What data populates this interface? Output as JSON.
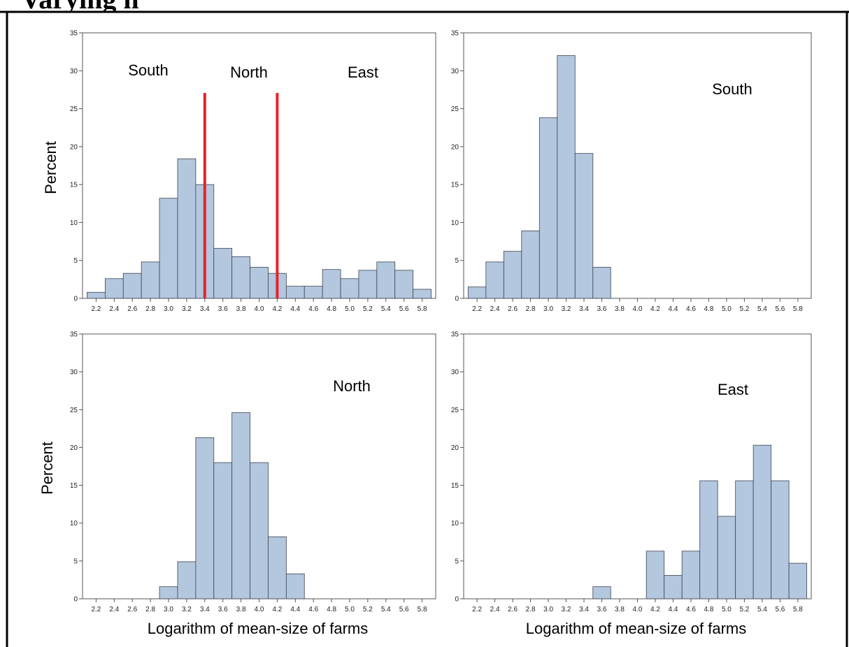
{
  "page": {
    "header_text_partial": "Varying n"
  },
  "chart_data": [
    {
      "type": "bar",
      "panel": "top-left",
      "ylabel": "Percent",
      "xlabel": "",
      "ylim": [
        0,
        35
      ],
      "yticks": [
        0,
        5,
        10,
        15,
        20,
        25,
        30,
        35
      ],
      "xlim": [
        2.05,
        5.95
      ],
      "xticks": [
        "2.2",
        "2.4",
        "2.6",
        "2.8",
        "3.0",
        "3.2",
        "3.4",
        "3.6",
        "3.8",
        "4.0",
        "4.2",
        "4.4",
        "4.6",
        "4.8",
        "5.0",
        "5.2",
        "5.4",
        "5.6",
        "5.8"
      ],
      "bin_width": 0.2,
      "bin_start": 2.1,
      "values": [
        0.8,
        2.6,
        3.3,
        4.8,
        13.2,
        18.4,
        15.0,
        6.6,
        5.5,
        4.1,
        3.3,
        1.6,
        1.6,
        3.8,
        2.6,
        3.7,
        4.8,
        3.7,
        1.2
      ],
      "annotations": [
        "South",
        "North",
        "East"
      ],
      "cutoffs": [
        3.4,
        4.2
      ],
      "cutoff_color": "#e8222b"
    },
    {
      "type": "bar",
      "panel": "top-right",
      "ylabel": "",
      "xlabel": "",
      "ylim": [
        0,
        35
      ],
      "yticks": [
        0,
        5,
        10,
        15,
        20,
        25,
        30,
        35
      ],
      "yticklabels": [
        "0",
        "5",
        "10",
        "15",
        "20",
        "25",
        "30",
        "35"
      ],
      "xlim": [
        2.05,
        5.95
      ],
      "xticks": [
        "2.2",
        "2.4",
        "2.6",
        "2.8",
        "3.0",
        "3.2",
        "3.4",
        "3.6",
        "3.8",
        "4.0",
        "4.2",
        "4.4",
        "4.6",
        "4.8",
        "5.0",
        "5.2",
        "5.4",
        "5.6",
        "5.8"
      ],
      "bin_width": 0.2,
      "bin_start": 2.1,
      "values": [
        1.5,
        4.8,
        6.2,
        8.9,
        23.8,
        32.0,
        19.1,
        4.1,
        0,
        0,
        0,
        0,
        0,
        0,
        0,
        0,
        0,
        0,
        0
      ],
      "annotations": [
        "South"
      ]
    },
    {
      "type": "bar",
      "panel": "bottom-left",
      "ylabel": "Percent",
      "xlabel": "Logarithm of mean-size of farms",
      "ylim": [
        0,
        35
      ],
      "yticks": [
        0,
        5,
        10,
        15,
        20,
        25,
        30,
        35
      ],
      "xlim": [
        2.05,
        5.95
      ],
      "xticks": [
        "2.2",
        "2.4",
        "2.6",
        "2.8",
        "3.0",
        "3.2",
        "3.4",
        "3.6",
        "3.8",
        "4.0",
        "4.2",
        "4.4",
        "4.6",
        "4.8",
        "5.0",
        "5.2",
        "5.4",
        "5.6",
        "5.8"
      ],
      "bin_width": 0.2,
      "bin_start": 2.1,
      "values": [
        0,
        0,
        0,
        0,
        1.6,
        4.9,
        21.3,
        18.0,
        24.6,
        18.0,
        8.2,
        3.3,
        0,
        0,
        0,
        0,
        0,
        0,
        0
      ],
      "annotations": [
        "North"
      ]
    },
    {
      "type": "bar",
      "panel": "bottom-right",
      "ylabel": "",
      "xlabel": "Logarithm of mean-size of farms",
      "ylim": [
        0,
        35
      ],
      "yticks": [
        0,
        5,
        10,
        15,
        20,
        25,
        30,
        35
      ],
      "yticklabels": [
        "0",
        "5",
        "10",
        "15",
        "20",
        "25",
        "30",
        "35"
      ],
      "xlim": [
        2.05,
        5.95
      ],
      "xticks": [
        "2.2",
        "2.4",
        "2.6",
        "2.8",
        "3.0",
        "3.2",
        "3.4",
        "3.6",
        "3.8",
        "4.0",
        "4.2",
        "4.4",
        "4.6",
        "4.8",
        "5.0",
        "5.2",
        "5.4",
        "5.6",
        "5.8"
      ],
      "bin_width": 0.2,
      "bin_start": 2.1,
      "values": [
        0,
        0,
        0,
        0,
        0,
        0,
        0,
        1.6,
        0,
        0,
        6.3,
        3.1,
        6.3,
        15.6,
        10.9,
        15.6,
        20.3,
        15.6,
        4.7
      ],
      "annotations": [
        "East"
      ]
    }
  ],
  "style": {
    "bar_fill": "#b3c7de",
    "bar_stroke": "#3c4450",
    "axis_color": "#555555",
    "cutoff_color": "#e8222b"
  }
}
